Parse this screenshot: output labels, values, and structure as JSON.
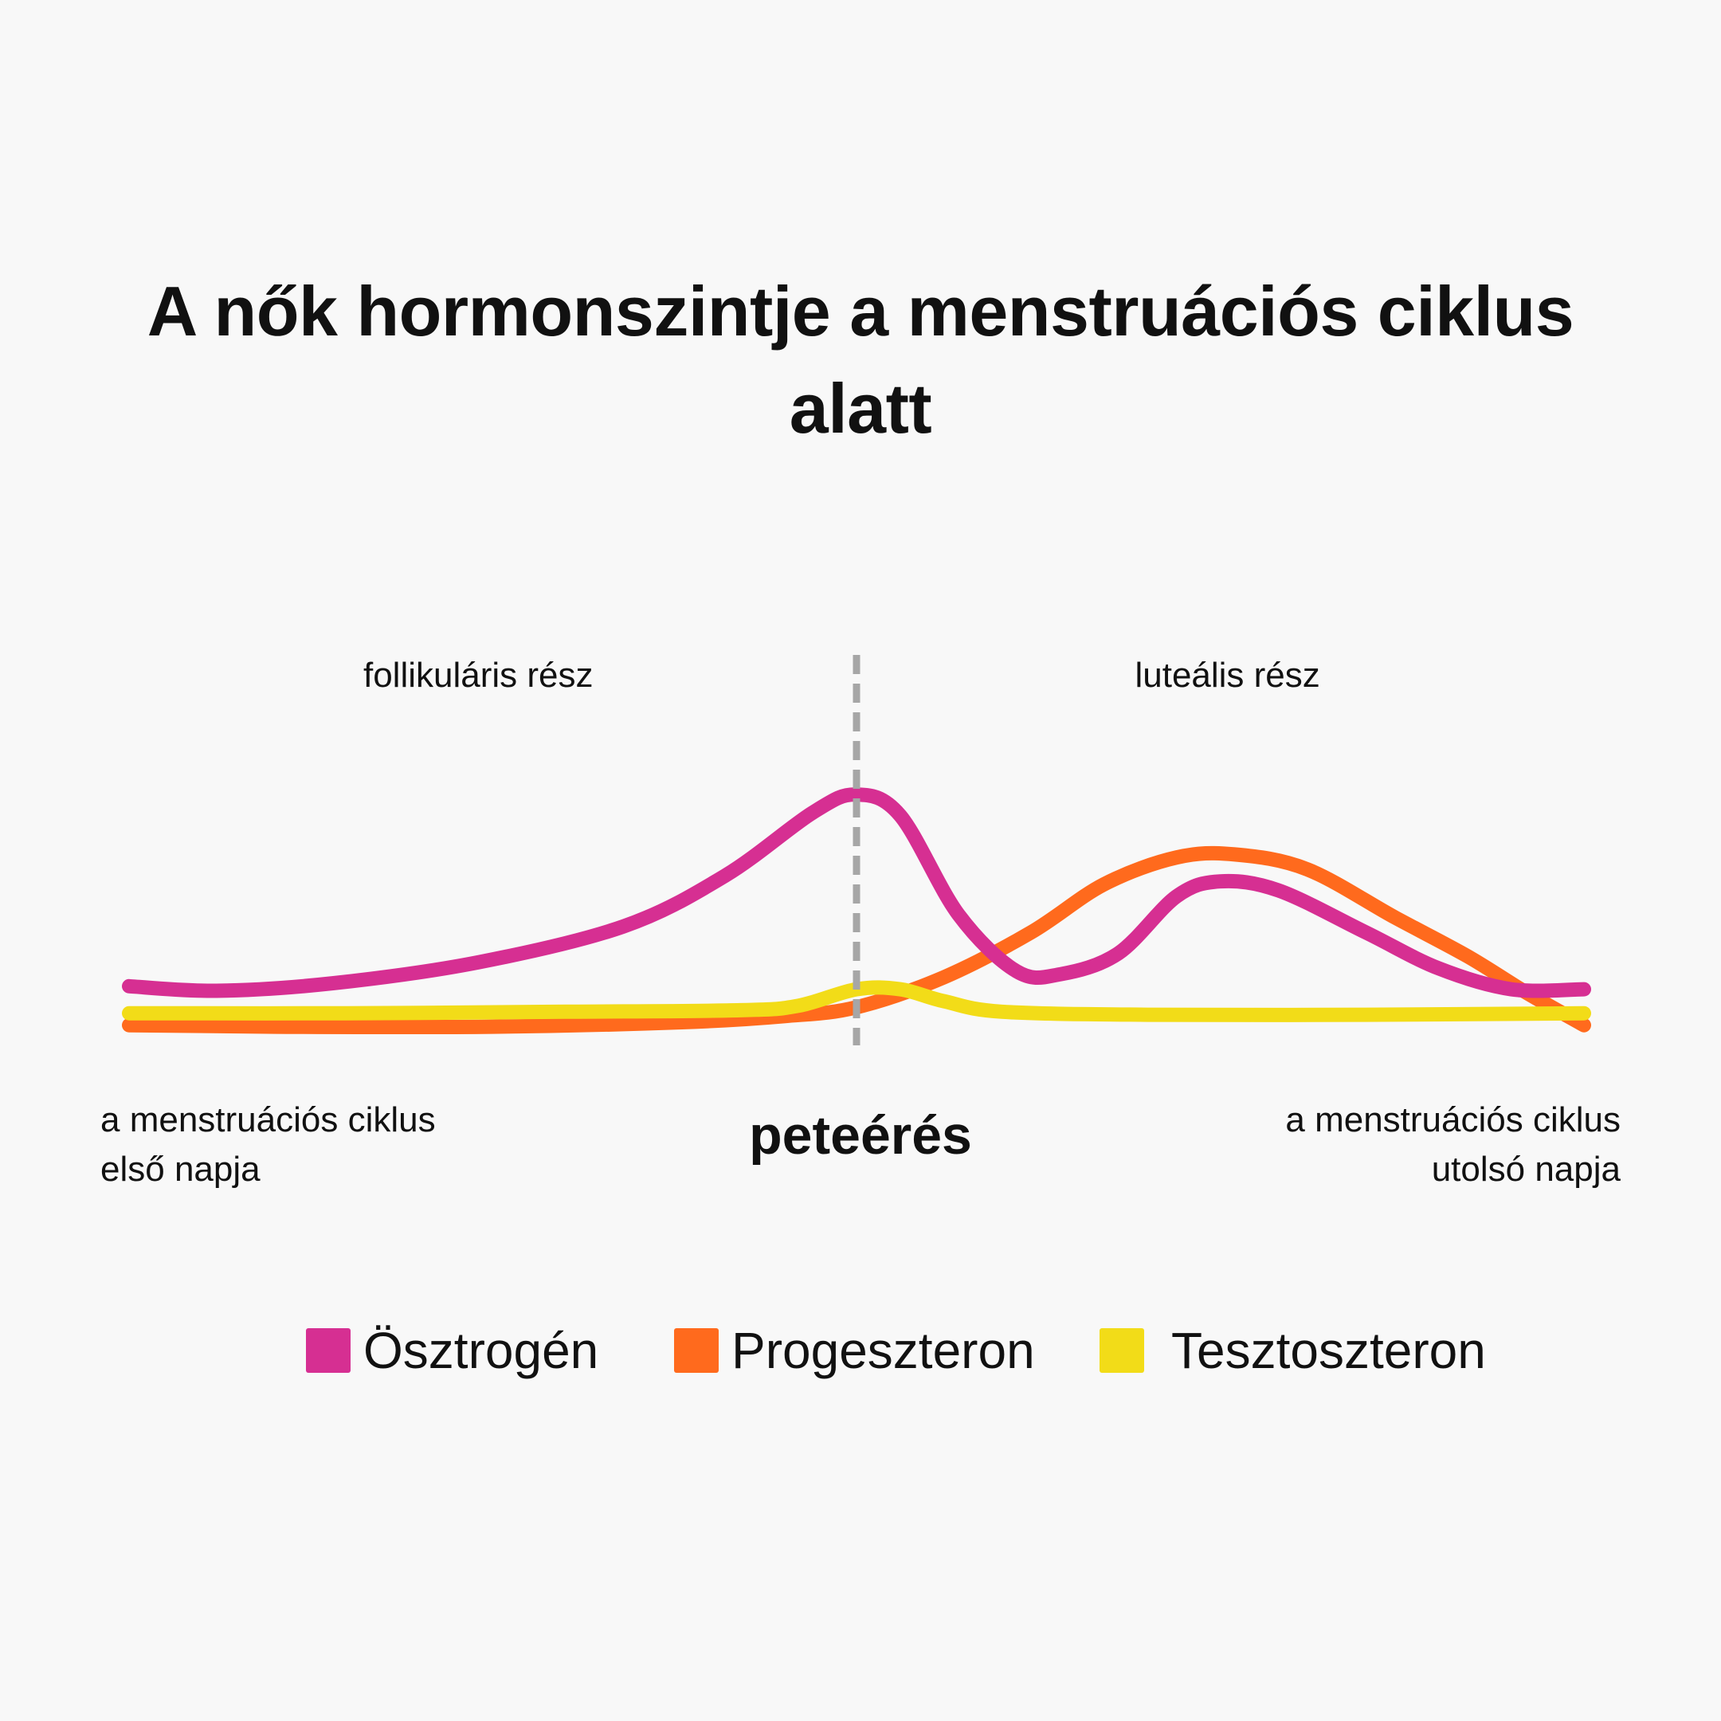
{
  "chart_data": {
    "type": "line",
    "title": "A nők hormonszintje a menstruációs ciklus alatt",
    "xlim": [
      0,
      100
    ],
    "ylim": [
      0,
      100
    ],
    "grid": false,
    "legend_position": "bottom",
    "vertical_marker": {
      "x": 50,
      "label": "peteérés"
    },
    "phase_labels": [
      {
        "x": 24,
        "text": "follikuláris rész"
      },
      {
        "x": 75.5,
        "text": "luteális rész"
      }
    ],
    "axis_end_labels": {
      "left": [
        "a menstruációs ciklus",
        "első napja"
      ],
      "right": [
        "a menstruációs ciklus",
        "utolsó napja"
      ]
    },
    "series": [
      {
        "name": "Ösztrogén",
        "color": "#d62f92",
        "points": [
          [
            0,
            16
          ],
          [
            6,
            14.5
          ],
          [
            14,
            17
          ],
          [
            24,
            24
          ],
          [
            34,
            36
          ],
          [
            41,
            53
          ],
          [
            47,
            74
          ],
          [
            50,
            80
          ],
          [
            53,
            73
          ],
          [
            57,
            40
          ],
          [
            61,
            21
          ],
          [
            64,
            20
          ],
          [
            68,
            27
          ],
          [
            72,
            46
          ],
          [
            75,
            51
          ],
          [
            79,
            48
          ],
          [
            85,
            34
          ],
          [
            90,
            22
          ],
          [
            95,
            15
          ],
          [
            100,
            15
          ]
        ]
      },
      {
        "name": "Progeszteron",
        "color": "#ff6a1d",
        "points": [
          [
            0,
            3
          ],
          [
            10,
            2.5
          ],
          [
            25,
            2.5
          ],
          [
            38,
            4
          ],
          [
            45,
            6
          ],
          [
            50,
            9
          ],
          [
            56,
            19
          ],
          [
            62,
            34
          ],
          [
            67,
            50
          ],
          [
            72,
            59
          ],
          [
            76,
            60
          ],
          [
            81,
            55
          ],
          [
            87,
            39
          ],
          [
            92,
            26
          ],
          [
            96,
            14
          ],
          [
            100,
            3
          ]
        ]
      },
      {
        "name": "Tesztoszteron",
        "color": "#f2dc18",
        "points": [
          [
            0,
            7
          ],
          [
            15,
            7
          ],
          [
            30,
            7.5
          ],
          [
            42,
            8
          ],
          [
            46,
            9.5
          ],
          [
            50,
            15
          ],
          [
            53,
            15
          ],
          [
            56,
            11
          ],
          [
            60,
            7.5
          ],
          [
            70,
            6.5
          ],
          [
            85,
            6.5
          ],
          [
            100,
            7
          ]
        ]
      }
    ]
  }
}
